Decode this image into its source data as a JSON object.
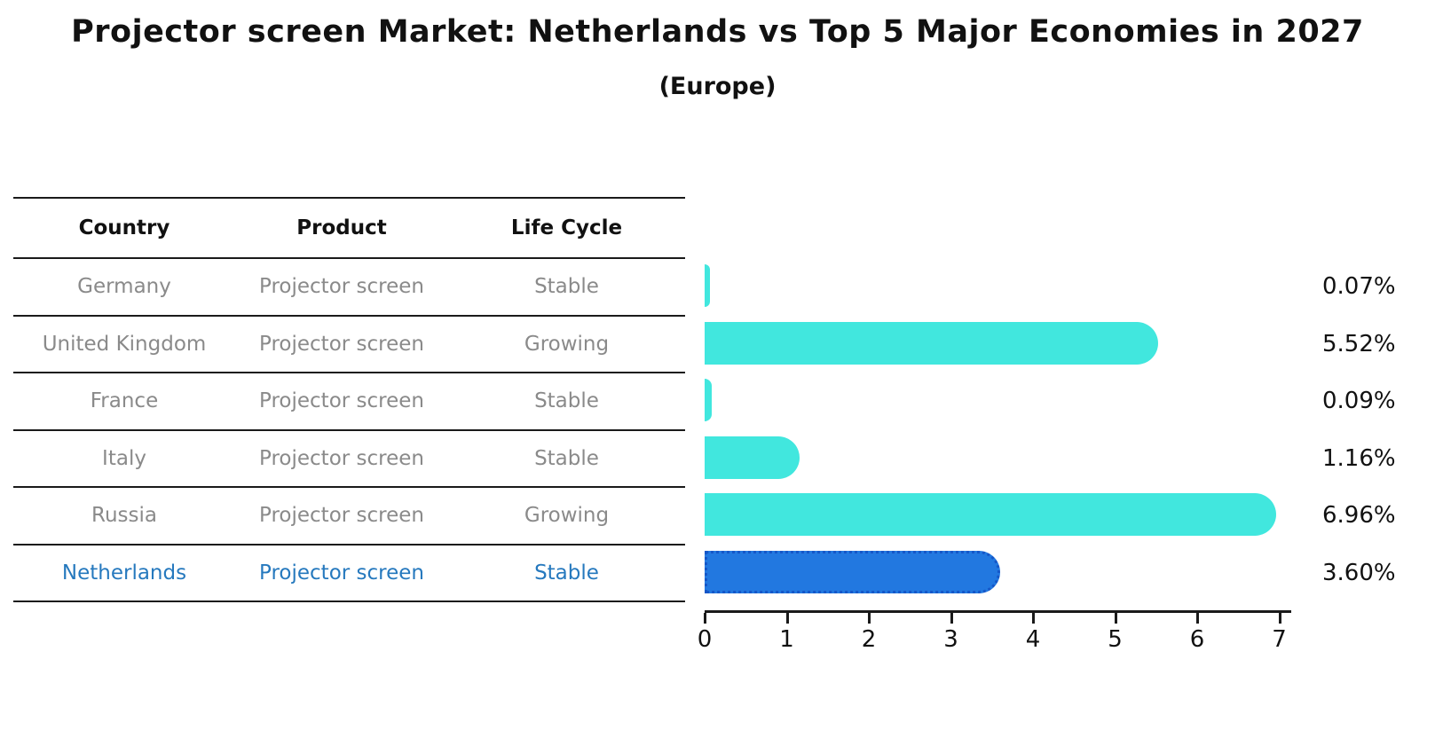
{
  "title": "Projector screen Market: Netherlands vs Top 5 Major Economies in 2027",
  "subtitle": "(Europe)",
  "table": {
    "headers": [
      "Country",
      "Product",
      "Life Cycle"
    ],
    "rows": [
      {
        "country": "Germany",
        "product": "Projector screen",
        "life_cycle": "Stable",
        "highlight": false
      },
      {
        "country": "United Kingdom",
        "product": "Projector screen",
        "life_cycle": "Growing",
        "highlight": false
      },
      {
        "country": "France",
        "product": "Projector screen",
        "life_cycle": "Stable",
        "highlight": false
      },
      {
        "country": "Italy",
        "product": "Projector screen",
        "life_cycle": "Stable",
        "highlight": false
      },
      {
        "country": "Russia",
        "product": "Projector screen",
        "life_cycle": "Growing",
        "highlight": false
      },
      {
        "country": "Netherlands",
        "product": "Projector screen",
        "life_cycle": "Stable",
        "highlight": true
      }
    ]
  },
  "chart_data": {
    "type": "bar",
    "orientation": "horizontal",
    "title": "Projector screen Market: Netherlands vs Top 5 Major Economies in 2027",
    "subtitle": "(Europe)",
    "categories": [
      "Germany",
      "United Kingdom",
      "France",
      "Italy",
      "Russia",
      "Netherlands"
    ],
    "values": [
      0.07,
      5.52,
      0.09,
      1.16,
      6.96,
      3.6
    ],
    "value_labels": [
      "0.07%",
      "5.52%",
      "0.09%",
      "1.16%",
      "6.96%",
      "3.60%"
    ],
    "xticks": [
      "0",
      "1",
      "2",
      "3",
      "4",
      "5",
      "6",
      "7"
    ],
    "xlim": [
      0,
      7.15
    ],
    "grid": false,
    "legend": false,
    "highlight_index": 5,
    "bar_color": "#41e7de",
    "highlight_bar_color": "#2278e0",
    "highlight_border_color": "#1557c8",
    "highlight_text_color": "#2679be",
    "axis_color": "#1a1a1a",
    "table_text_color": "#8a8a8a"
  }
}
